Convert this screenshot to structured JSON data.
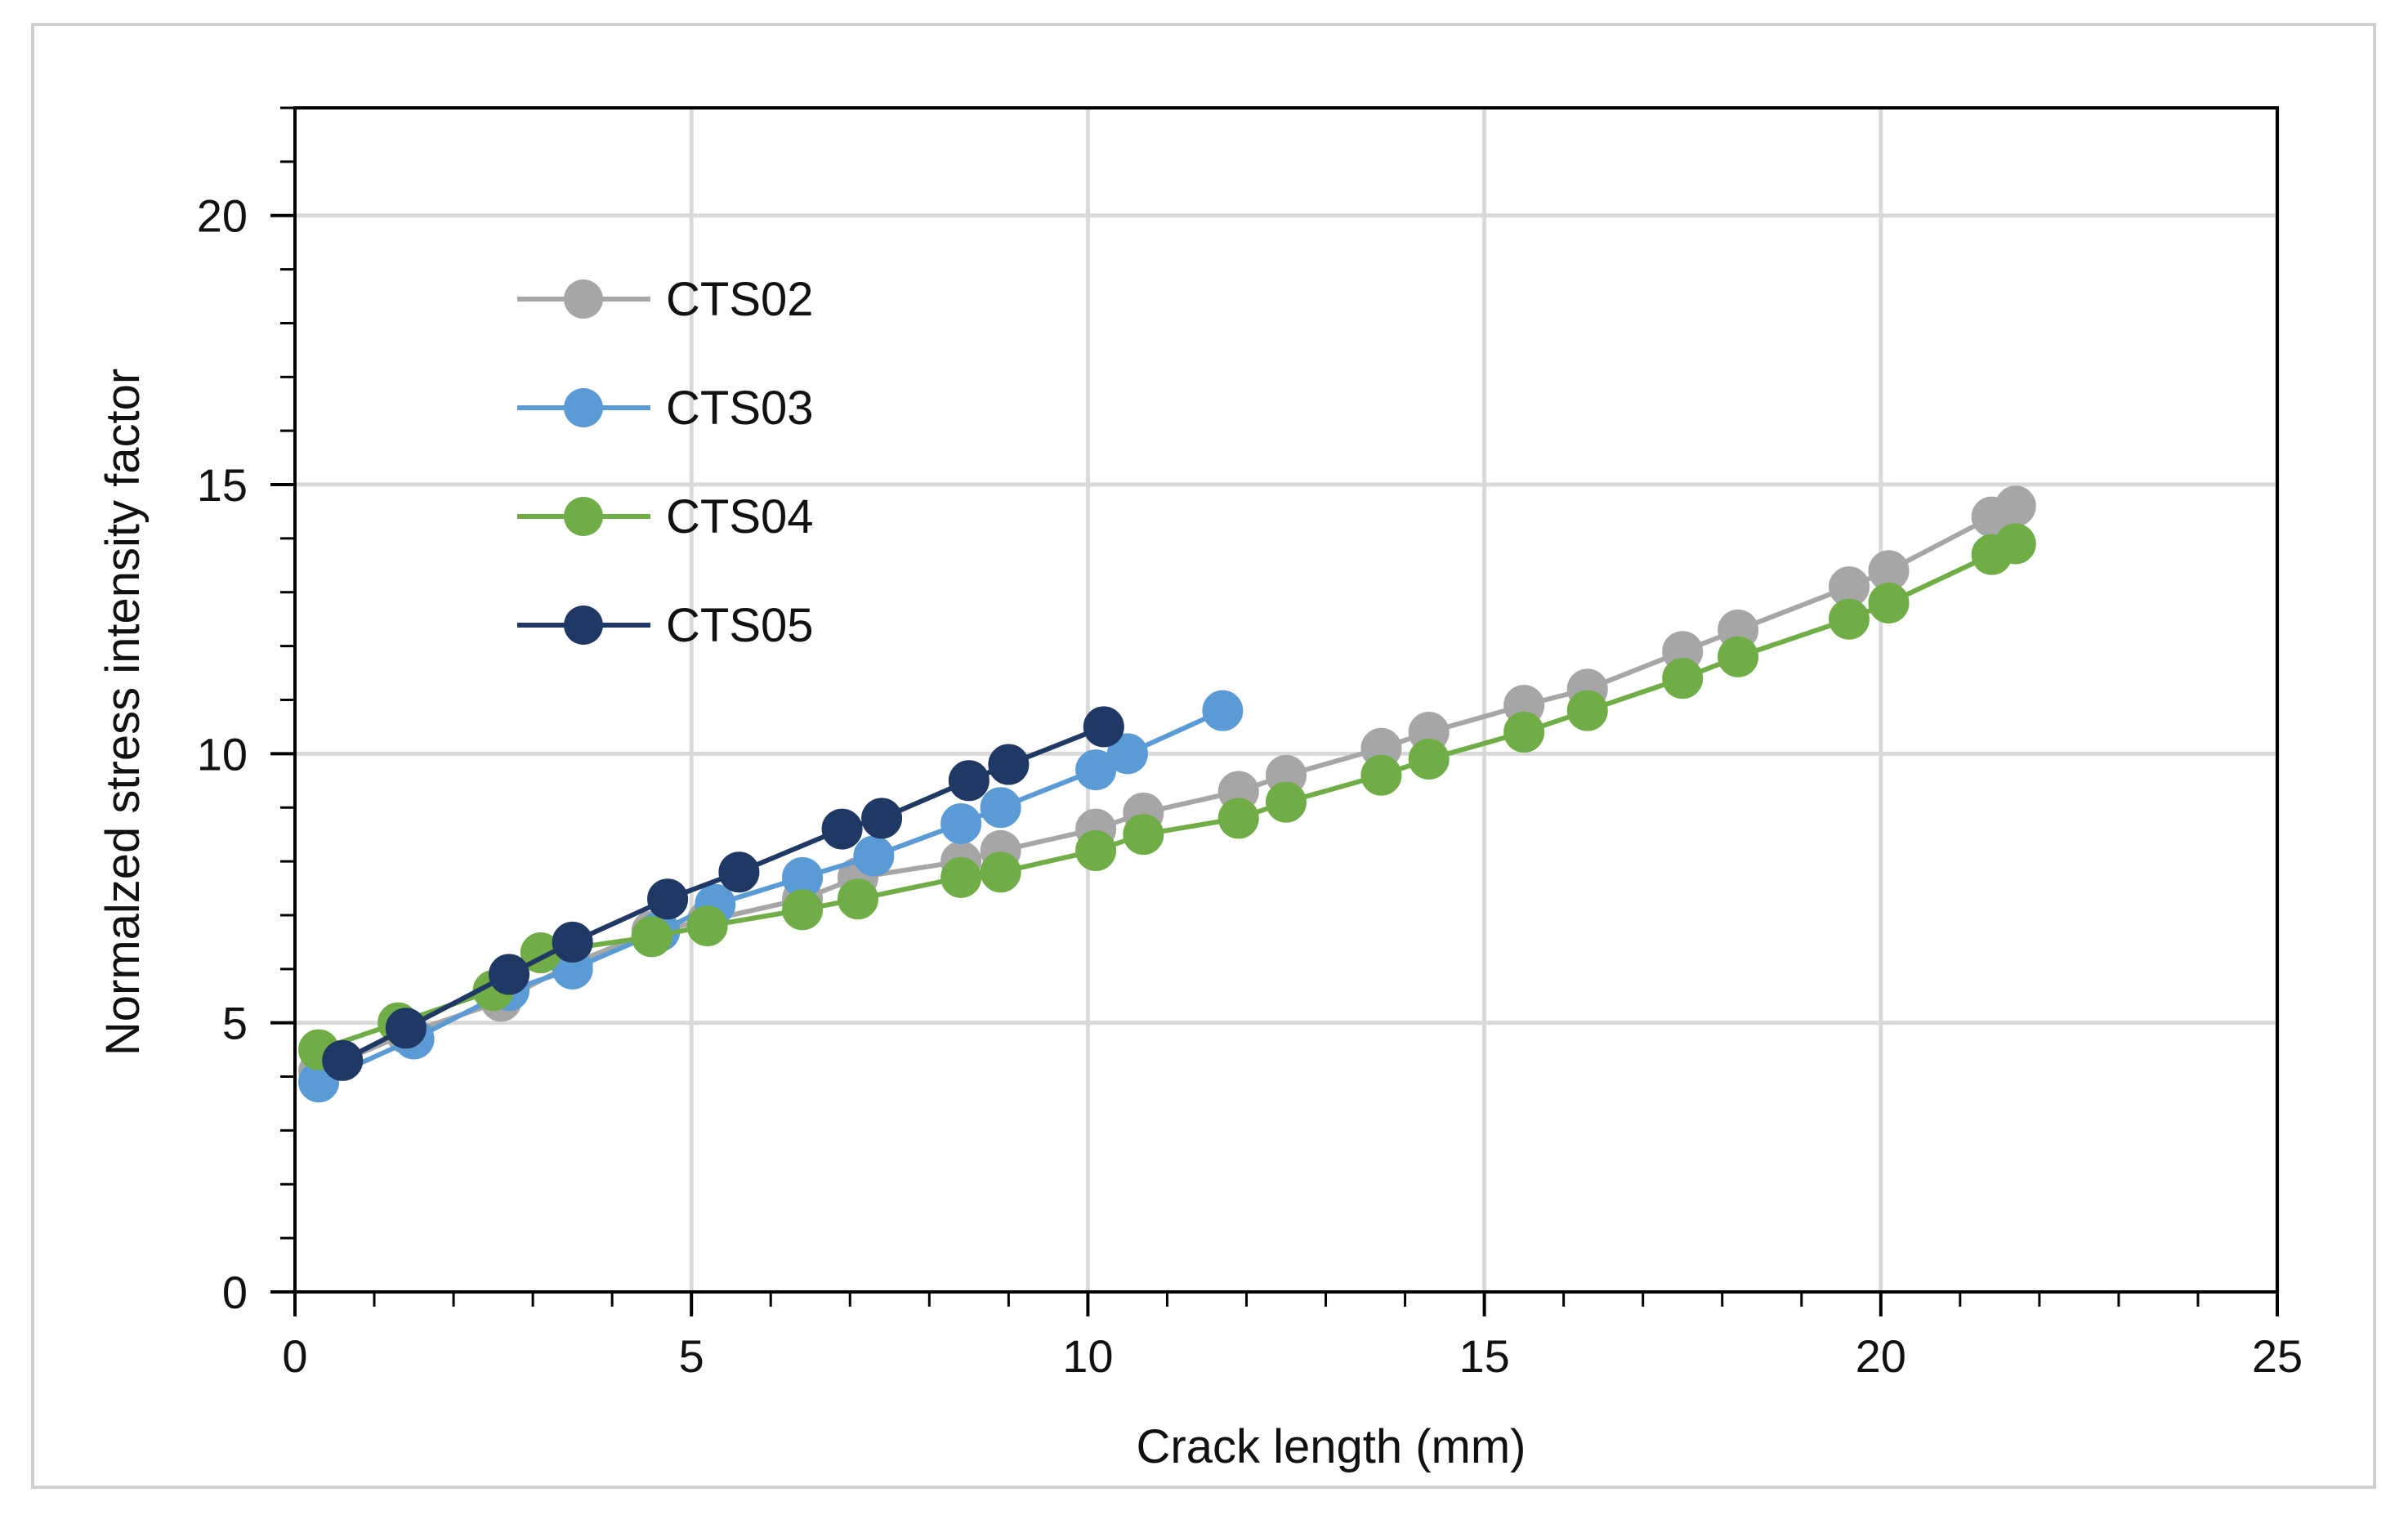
{
  "chart_data": {
    "type": "line",
    "title": "",
    "xlabel": "Crack length (mm)",
    "ylabel": "Normalzed stress intensity factor",
    "xlim": [
      0,
      25
    ],
    "ylim": [
      0,
      22
    ],
    "xticks": [
      0,
      5,
      10,
      15,
      20,
      25
    ],
    "yticks": [
      0,
      5,
      10,
      15,
      20
    ],
    "x_minor_step": 1,
    "y_minor_step": 1,
    "grid": true,
    "legend_position": "top-left",
    "series": [
      {
        "name": "CTS02",
        "color": "#a6a6a6",
        "x": [
          0.3,
          1.4,
          2.6,
          3.5,
          4.5,
          5.2,
          6.4,
          7.1,
          8.4,
          8.9,
          10.1,
          10.7,
          11.9,
          12.5,
          13.7,
          14.3,
          15.5,
          16.3,
          17.5,
          18.2,
          19.6,
          20.1,
          21.4,
          21.7
        ],
        "y": [
          4.1,
          4.8,
          5.4,
          6.1,
          6.7,
          6.9,
          7.3,
          7.7,
          8.0,
          8.2,
          8.6,
          8.9,
          9.3,
          9.6,
          10.1,
          10.4,
          10.9,
          11.2,
          11.9,
          12.3,
          13.1,
          13.4,
          14.4,
          14.6
        ]
      },
      {
        "name": "CTS03",
        "color": "#5b9bd5",
        "x": [
          0.3,
          1.5,
          2.7,
          3.5,
          4.6,
          5.3,
          6.4,
          7.3,
          8.4,
          8.9,
          10.1,
          10.5,
          11.7
        ],
        "y": [
          3.9,
          4.7,
          5.6,
          6.0,
          6.7,
          7.2,
          7.7,
          8.1,
          8.7,
          9.0,
          9.7,
          10.0,
          10.8
        ]
      },
      {
        "name": "CTS04",
        "color": "#70ad47",
        "x": [
          0.3,
          1.3,
          2.5,
          3.1,
          4.5,
          5.2,
          6.4,
          7.1,
          8.4,
          8.9,
          10.1,
          10.7,
          11.9,
          12.5,
          13.7,
          14.3,
          15.5,
          16.3,
          17.5,
          18.2,
          19.6,
          20.1,
          21.4,
          21.7
        ],
        "y": [
          4.5,
          5.0,
          5.6,
          6.3,
          6.6,
          6.8,
          7.1,
          7.3,
          7.7,
          7.8,
          8.2,
          8.5,
          8.8,
          9.1,
          9.6,
          9.9,
          10.4,
          10.8,
          11.4,
          11.8,
          12.5,
          12.8,
          13.7,
          13.9
        ]
      },
      {
        "name": "CTS05",
        "color": "#203864",
        "x": [
          0.6,
          1.4,
          2.7,
          3.5,
          4.7,
          5.6,
          6.9,
          7.4,
          8.5,
          9.0,
          10.2
        ],
        "y": [
          4.3,
          4.9,
          5.9,
          6.5,
          7.3,
          7.8,
          8.6,
          8.8,
          9.5,
          9.8,
          10.5
        ]
      }
    ]
  }
}
